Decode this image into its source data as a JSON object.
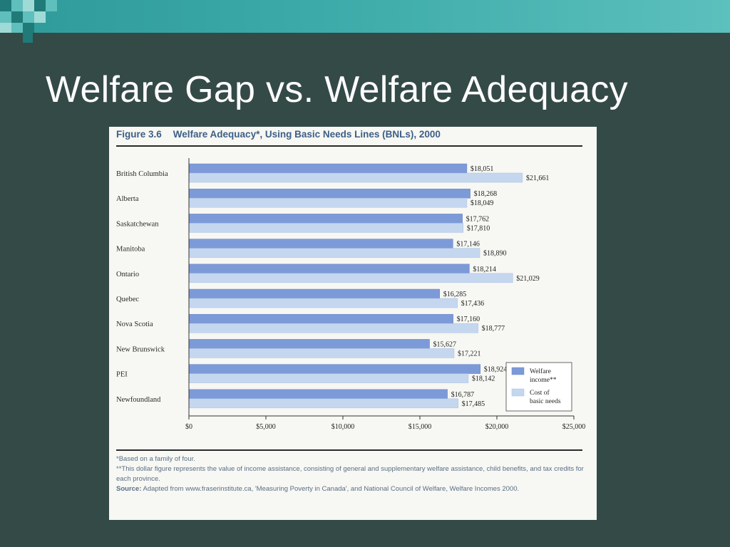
{
  "slide": {
    "title": "Welfare Gap vs. Welfare Adequacy"
  },
  "figure": {
    "number": "Figure 3.6",
    "heading": "Welfare Adequacy*, Using Basic Needs Lines (BNLs), 2000",
    "notes": {
      "note1": "*Based on a family of four.",
      "note2": "**This dollar figure represents the value of income assistance, consisting of general and supplementary welfare assistance, child benefits, and tax credits for each province.",
      "source_label": "Source:",
      "source_text": "Adapted from www.fraserinstitute.ca, 'Measuring Poverty in Canada', and National Council of Welfare, Welfare Incomes 2000."
    }
  },
  "chart_data": {
    "type": "bar",
    "orientation": "horizontal",
    "categories": [
      "British Columbia",
      "Alberta",
      "Saskatchewan",
      "Manitoba",
      "Ontario",
      "Quebec",
      "Nova Scotia",
      "New Brunswick",
      "PEI",
      "Newfoundland"
    ],
    "series": [
      {
        "name": "Welfare income**",
        "values": [
          18051,
          18268,
          17762,
          17146,
          18214,
          16285,
          17160,
          15627,
          18924,
          16787
        ],
        "labels": [
          "$18,051",
          "$18,268",
          "$17,762",
          "$17,146",
          "$18,214",
          "$16,285",
          "$17,160",
          "$15,627",
          "$18,924",
          "$16,787"
        ],
        "color": "#7d9ad8"
      },
      {
        "name": "Cost of basic needs",
        "values": [
          21661,
          18049,
          17810,
          18890,
          21029,
          17436,
          18777,
          17221,
          18142,
          17485
        ],
        "labels": [
          "$21,661",
          "$18,049",
          "$17,810",
          "$18,890",
          "$21,029",
          "$17,436",
          "$18,777",
          "$17,221",
          "$18,142",
          "$17,485"
        ],
        "color": "#c5d7ef"
      }
    ],
    "xlim": [
      0,
      25000
    ],
    "xticks": [
      0,
      5000,
      10000,
      15000,
      20000,
      25000
    ],
    "xtick_labels": [
      "$0",
      "$5,000",
      "$10,000",
      "$15,000",
      "$20,000",
      "$25,000"
    ],
    "legend_position": "lower-right",
    "grid": false
  }
}
